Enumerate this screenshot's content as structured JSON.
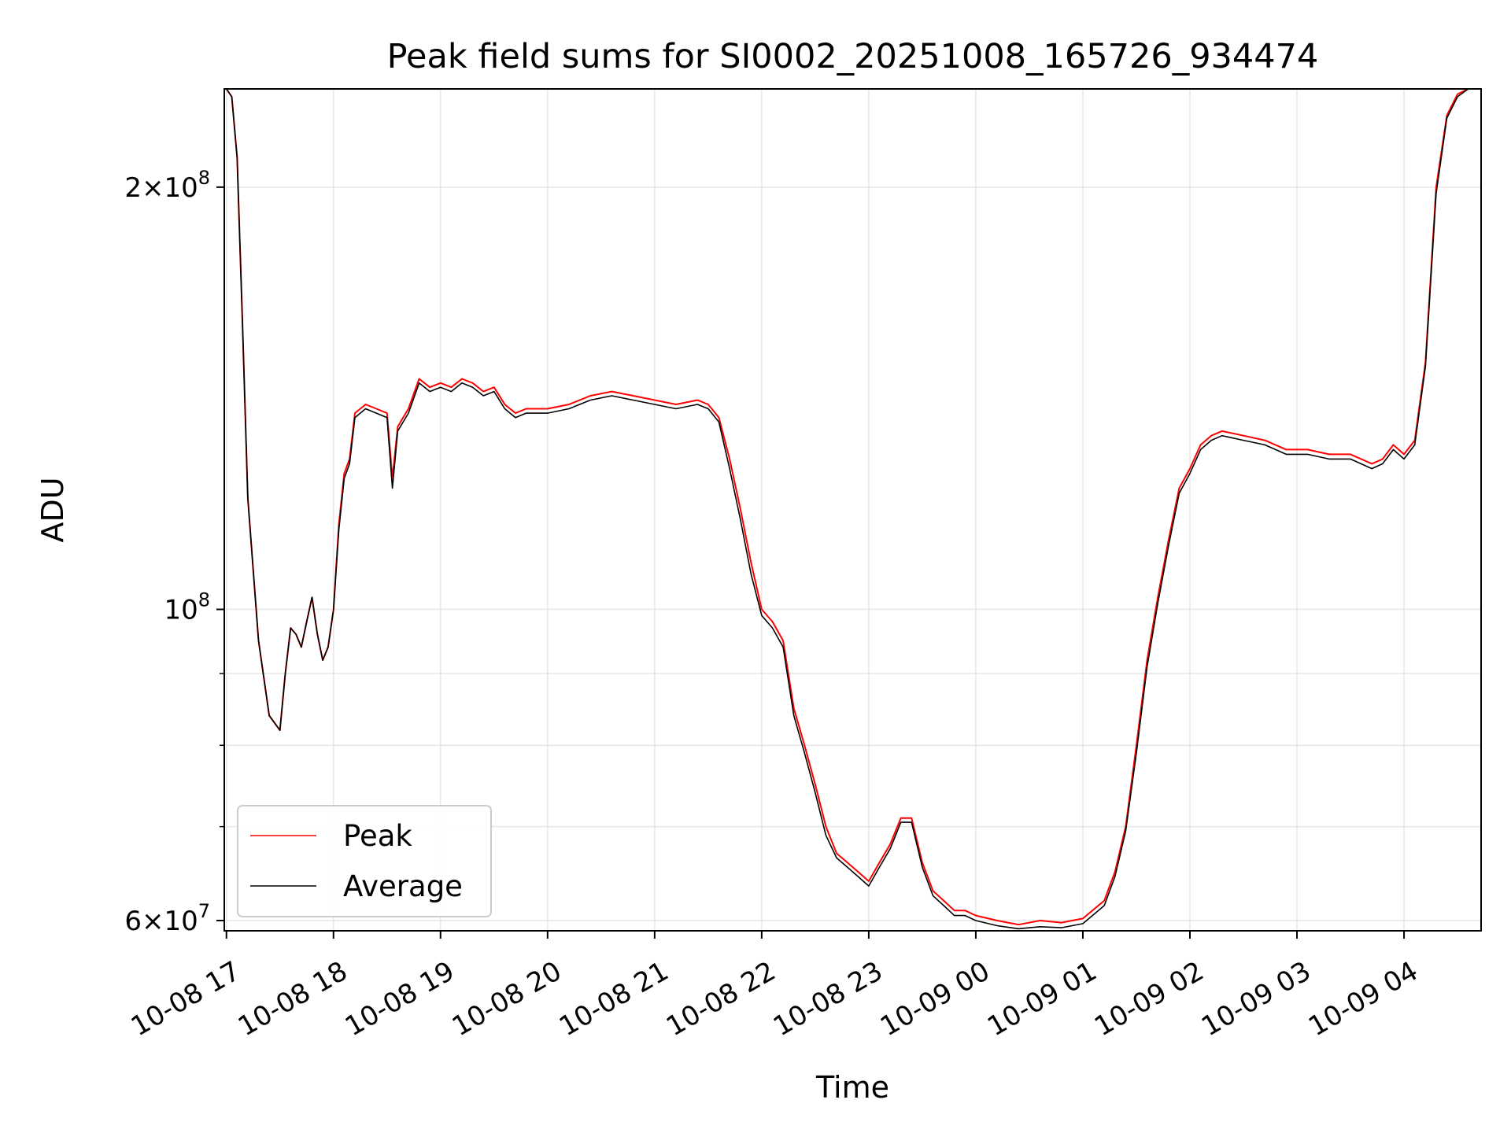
{
  "chart_data": {
    "type": "line",
    "title": "Peak field sums for SI0002_20251008_165726_934474",
    "xlabel": "Time",
    "ylabel": "ADU",
    "yscale": "log",
    "ylim": [
      59000000,
      235000000
    ],
    "xlim": [
      -0.02,
      11.72
    ],
    "grid": true,
    "legend_position": "lower-left",
    "x_tick_labels": [
      "10-08 17",
      "10-08 18",
      "10-08 19",
      "10-08 20",
      "10-08 21",
      "10-08 22",
      "10-08 23",
      "10-09 00",
      "10-09 01",
      "10-09 02",
      "10-09 03",
      "10-09 04"
    ],
    "x_tick_values": [
      0,
      1,
      2,
      3,
      4,
      5,
      6,
      7,
      8,
      9,
      10,
      11
    ],
    "y_major_ticks": [
      {
        "value": 60000000,
        "base": "6×10",
        "exp": "7"
      },
      {
        "value": 100000000,
        "base": "10",
        "exp": "8"
      },
      {
        "value": 200000000,
        "base": "2×10",
        "exp": "8"
      }
    ],
    "y_minor_ticks": [
      70000000,
      80000000,
      90000000
    ],
    "series": [
      {
        "name": "Peak",
        "color": "#ff0000",
        "x": [
          0,
          0.05,
          0.1,
          0.15,
          0.2,
          0.3,
          0.4,
          0.5,
          0.55,
          0.6,
          0.65,
          0.7,
          0.75,
          0.8,
          0.85,
          0.9,
          0.95,
          1.0,
          1.05,
          1.1,
          1.15,
          1.2,
          1.3,
          1.4,
          1.5,
          1.55,
          1.6,
          1.65,
          1.7,
          1.8,
          1.9,
          2.0,
          2.1,
          2.2,
          2.3,
          2.4,
          2.5,
          2.6,
          2.7,
          2.8,
          3.0,
          3.2,
          3.4,
          3.6,
          3.8,
          4.0,
          4.2,
          4.4,
          4.5,
          4.6,
          4.7,
          4.8,
          4.9,
          5.0,
          5.1,
          5.2,
          5.3,
          5.4,
          5.5,
          5.6,
          5.7,
          5.8,
          5.9,
          6.0,
          6.1,
          6.2,
          6.3,
          6.4,
          6.5,
          6.6,
          6.7,
          6.8,
          6.9,
          7.0,
          7.2,
          7.4,
          7.6,
          7.8,
          8.0,
          8.2,
          8.3,
          8.4,
          8.5,
          8.6,
          8.7,
          8.8,
          8.9,
          9.0,
          9.1,
          9.2,
          9.3,
          9.5,
          9.7,
          9.9,
          10.1,
          10.3,
          10.5,
          10.7,
          10.8,
          10.9,
          11.0,
          11.1,
          11.2,
          11.3,
          11.4,
          11.5,
          11.6,
          11.7
        ],
        "values": [
          235000000,
          232000000,
          210000000,
          160000000,
          120000000,
          95000000,
          84000000,
          82000000,
          90000000,
          97000000,
          96000000,
          94000000,
          98000000,
          102000000,
          96000000,
          92000000,
          94000000,
          100000000,
          115000000,
          125000000,
          128000000,
          138000000,
          140000000,
          139000000,
          138000000,
          124000000,
          135000000,
          137000000,
          139000000,
          146000000,
          144000000,
          145000000,
          144000000,
          146000000,
          145000000,
          143000000,
          144000000,
          140000000,
          138000000,
          139000000,
          139000000,
          140000000,
          142000000,
          143000000,
          142000000,
          141000000,
          140000000,
          141000000,
          140000000,
          137000000,
          128000000,
          118000000,
          108000000,
          100000000,
          98000000,
          95000000,
          85000000,
          80000000,
          75000000,
          70000000,
          67000000,
          66000000,
          65000000,
          64000000,
          66000000,
          68000000,
          71000000,
          71000000,
          66000000,
          63000000,
          62000000,
          61000000,
          61000000,
          60500000,
          60000000,
          59600000,
          60000000,
          59800000,
          60200000,
          62000000,
          65000000,
          70000000,
          80000000,
          92000000,
          102000000,
          112000000,
          122000000,
          126000000,
          131000000,
          133000000,
          134000000,
          133000000,
          132000000,
          130000000,
          130000000,
          129000000,
          129000000,
          127000000,
          128000000,
          131000000,
          129000000,
          132000000,
          150000000,
          200000000,
          225000000,
          233000000,
          235000000,
          235000000
        ]
      },
      {
        "name": "Average",
        "color": "#000000",
        "x": [
          0,
          0.05,
          0.1,
          0.15,
          0.2,
          0.3,
          0.4,
          0.5,
          0.55,
          0.6,
          0.65,
          0.7,
          0.75,
          0.8,
          0.85,
          0.9,
          0.95,
          1.0,
          1.05,
          1.1,
          1.15,
          1.2,
          1.3,
          1.4,
          1.5,
          1.55,
          1.6,
          1.65,
          1.7,
          1.8,
          1.9,
          2.0,
          2.1,
          2.2,
          2.3,
          2.4,
          2.5,
          2.6,
          2.7,
          2.8,
          3.0,
          3.2,
          3.4,
          3.6,
          3.8,
          4.0,
          4.2,
          4.4,
          4.5,
          4.6,
          4.7,
          4.8,
          4.9,
          5.0,
          5.1,
          5.2,
          5.3,
          5.4,
          5.5,
          5.6,
          5.7,
          5.8,
          5.9,
          6.0,
          6.1,
          6.2,
          6.3,
          6.4,
          6.5,
          6.6,
          6.7,
          6.8,
          6.9,
          7.0,
          7.2,
          7.4,
          7.6,
          7.8,
          8.0,
          8.2,
          8.3,
          8.4,
          8.5,
          8.6,
          8.7,
          8.8,
          8.9,
          9.0,
          9.1,
          9.2,
          9.3,
          9.5,
          9.7,
          9.9,
          10.1,
          10.3,
          10.5,
          10.7,
          10.8,
          10.9,
          11.0,
          11.1,
          11.2,
          11.3,
          11.4,
          11.5,
          11.6,
          11.7
        ],
        "values": [
          235000000,
          232000000,
          210000000,
          160000000,
          120000000,
          95000000,
          84000000,
          82000000,
          90000000,
          97000000,
          96000000,
          94000000,
          98000000,
          102000000,
          96000000,
          92000000,
          94000000,
          100000000,
          114000000,
          124000000,
          127000000,
          137000000,
          139000000,
          138000000,
          137000000,
          122000000,
          134000000,
          136000000,
          138000000,
          145000000,
          143000000,
          144000000,
          143000000,
          145000000,
          144000000,
          142000000,
          143000000,
          139000000,
          137000000,
          138000000,
          138000000,
          139000000,
          141000000,
          142000000,
          141000000,
          140000000,
          139000000,
          140000000,
          139000000,
          136000000,
          126000000,
          116000000,
          106000000,
          99000000,
          97000000,
          94000000,
          84000000,
          79000000,
          74000000,
          69000000,
          66500000,
          65500000,
          64500000,
          63500000,
          65500000,
          67500000,
          70500000,
          70500000,
          65500000,
          62500000,
          61500000,
          60500000,
          60500000,
          60000000,
          59500000,
          59200000,
          59400000,
          59300000,
          59700000,
          61500000,
          64500000,
          69500000,
          79000000,
          91000000,
          101000000,
          111000000,
          121000000,
          125000000,
          130000000,
          132000000,
          133000000,
          132000000,
          131000000,
          129000000,
          129000000,
          128000000,
          128000000,
          126000000,
          127000000,
          130000000,
          128000000,
          131000000,
          149000000,
          198000000,
          224000000,
          232000000,
          235000000,
          235000000
        ]
      }
    ]
  }
}
